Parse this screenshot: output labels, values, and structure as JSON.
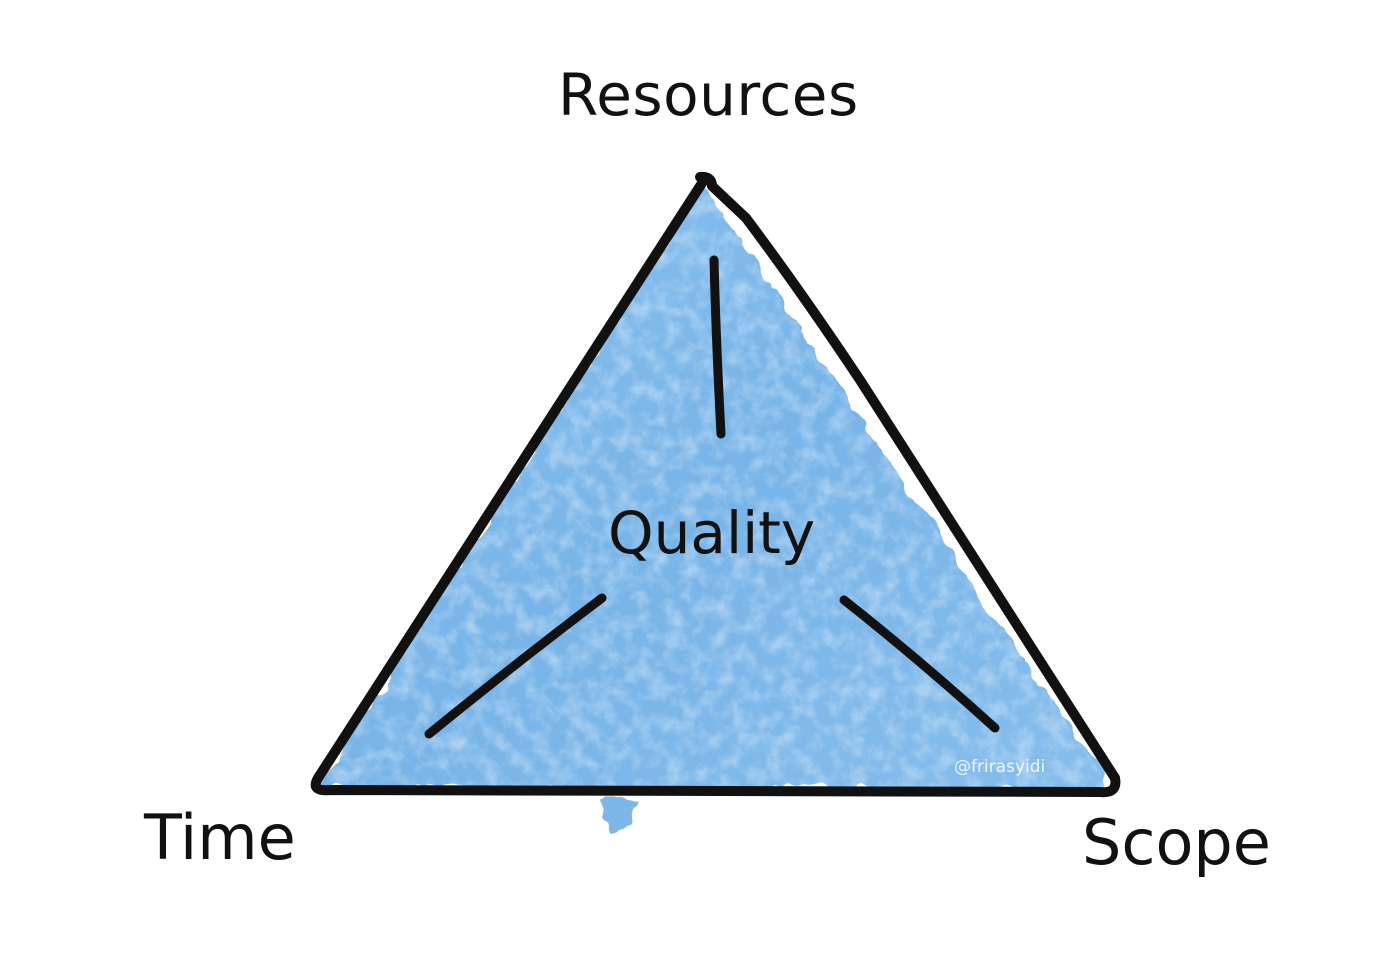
{
  "diagram": {
    "vertices": {
      "top": "Resources",
      "bottom_left": "Time",
      "bottom_right": "Scope"
    },
    "center": "Quality",
    "watermark": "@frirasyidi"
  },
  "colors": {
    "fill": "#7fb8ea",
    "fill_light": "#a9d2f4",
    "stroke": "#111111",
    "text": "#111111"
  }
}
